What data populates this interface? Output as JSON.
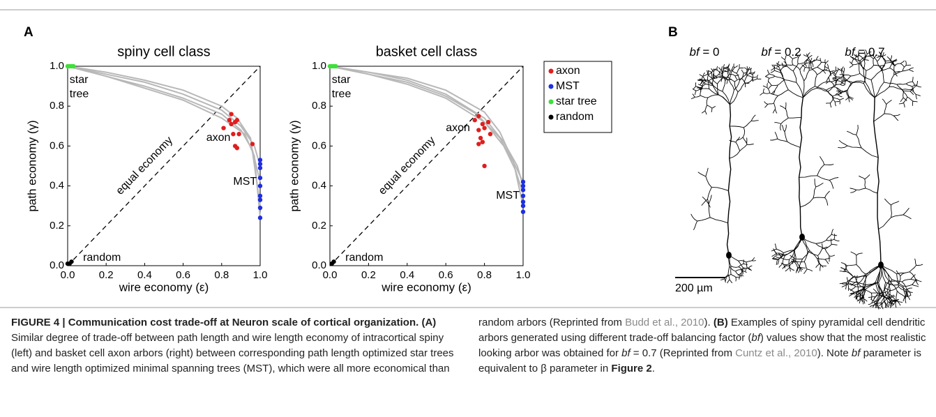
{
  "panel_a_label": "A",
  "chart_data": [
    {
      "type": "scatter",
      "title": "spiny cell class",
      "x_label": "wire economy (ε)",
      "y_label": "path economy (γ)",
      "xlim": [
        0,
        1
      ],
      "ylim": [
        0,
        1
      ],
      "xticks": [
        {
          "value": 0,
          "label": "0.0"
        },
        0.2,
        0.4,
        0.6,
        0.8,
        {
          "value": 1,
          "label": "1.0"
        }
      ],
      "yticks": [
        {
          "value": 0,
          "label": "0.0"
        },
        0.2,
        0.4,
        0.6,
        0.8,
        {
          "value": 1,
          "label": "1.0"
        }
      ],
      "annotations": [
        "star",
        "tree",
        "axon",
        "MST",
        "random",
        "equal economy"
      ],
      "curves": [
        {
          "color": "#b8b8b8",
          "x": [
            0,
            0.2,
            0.4,
            0.6,
            0.8,
            0.9,
            0.97,
            1.0
          ],
          "y": [
            1,
            0.96,
            0.92,
            0.86,
            0.78,
            0.7,
            0.6,
            0.5
          ]
        },
        {
          "color": "#b8b8b8",
          "x": [
            0,
            0.2,
            0.4,
            0.6,
            0.8,
            0.9,
            0.96,
            1.0
          ],
          "y": [
            1,
            0.95,
            0.9,
            0.84,
            0.76,
            0.68,
            0.58,
            0.42
          ]
        },
        {
          "color": "#b8b8b8",
          "x": [
            0,
            0.2,
            0.4,
            0.6,
            0.8,
            0.88,
            0.95,
            1.0
          ],
          "y": [
            1,
            0.97,
            0.93,
            0.88,
            0.8,
            0.74,
            0.64,
            0.3
          ]
        },
        {
          "color": "#b8b8b8",
          "x": [
            0,
            0.2,
            0.4,
            0.6,
            0.8,
            0.92,
            0.97,
            1.0
          ],
          "y": [
            1,
            0.95,
            0.89,
            0.83,
            0.74,
            0.66,
            0.55,
            0.24
          ]
        }
      ],
      "series": [
        {
          "name": "axon",
          "color": "#e01e1e",
          "x": [
            0.85,
            0.87,
            0.88,
            0.85,
            0.81,
            0.86,
            0.89,
            0.87,
            0.88,
            0.96,
            0.84
          ],
          "values": [
            0.76,
            0.72,
            0.73,
            0.71,
            0.69,
            0.66,
            0.66,
            0.6,
            0.59,
            0.61,
            0.73
          ]
        },
        {
          "name": "MST",
          "color": "#1f2fe0",
          "x": [
            1,
            1,
            1,
            1,
            1,
            1,
            1,
            1,
            1
          ],
          "values": [
            0.53,
            0.51,
            0.49,
            0.44,
            0.4,
            0.35,
            0.33,
            0.29,
            0.24
          ]
        },
        {
          "name": "star tree",
          "color": "#3ee03a",
          "x": [
            0,
            0.01,
            0.02,
            0.03
          ],
          "values": [
            1,
            1,
            1,
            1
          ]
        },
        {
          "name": "random",
          "color": "#000000",
          "x": [
            0,
            0.01,
            0.02
          ],
          "values": [
            0.01,
            0.01,
            0.02
          ]
        }
      ]
    },
    {
      "type": "scatter",
      "title": "basket cell class",
      "x_label": "wire economy (ε)",
      "y_label": "path economy (γ)",
      "xlim": [
        0,
        1
      ],
      "ylim": [
        0,
        1
      ],
      "xticks": [
        {
          "value": 0,
          "label": "0.0"
        },
        0.2,
        0.4,
        0.6,
        0.8,
        {
          "value": 1,
          "label": "1.0"
        }
      ],
      "yticks": [
        {
          "value": 0,
          "label": "0.0"
        },
        0.2,
        0.4,
        0.6,
        0.8,
        {
          "value": 1,
          "label": "1.0"
        }
      ],
      "annotations": [
        "star",
        "tree",
        "axon",
        "MST",
        "random",
        "equal economy"
      ],
      "legend": "outside-right",
      "curves": [
        {
          "color": "#b8b8b8",
          "x": [
            0,
            0.2,
            0.4,
            0.6,
            0.8,
            0.9,
            0.97,
            1.0
          ],
          "y": [
            1,
            0.97,
            0.93,
            0.86,
            0.74,
            0.62,
            0.5,
            0.4
          ]
        },
        {
          "color": "#b8b8b8",
          "x": [
            0,
            0.2,
            0.4,
            0.6,
            0.8,
            0.9,
            0.96,
            1.0
          ],
          "y": [
            1,
            0.96,
            0.91,
            0.84,
            0.72,
            0.6,
            0.48,
            0.36
          ]
        },
        {
          "color": "#b8b8b8",
          "x": [
            0,
            0.2,
            0.4,
            0.6,
            0.8,
            0.88,
            0.95,
            1.0
          ],
          "y": [
            1,
            0.97,
            0.94,
            0.88,
            0.77,
            0.67,
            0.52,
            0.3
          ]
        },
        {
          "color": "#b8b8b8",
          "x": [
            0,
            0.2,
            0.4,
            0.6,
            0.76,
            0.88,
            0.96,
            1.0
          ],
          "y": [
            1,
            0.96,
            0.92,
            0.85,
            0.76,
            0.64,
            0.5,
            0.42
          ]
        }
      ],
      "series": [
        {
          "name": "axon",
          "color": "#e01e1e",
          "x": [
            0.77,
            0.75,
            0.79,
            0.82,
            0.77,
            0.8,
            0.83,
            0.78,
            0.79,
            0.77,
            0.8
          ],
          "values": [
            0.75,
            0.73,
            0.71,
            0.72,
            0.68,
            0.69,
            0.66,
            0.64,
            0.62,
            0.61,
            0.5
          ]
        },
        {
          "name": "MST",
          "color": "#1f2fe0",
          "x": [
            1,
            1,
            1,
            1,
            1,
            1,
            1
          ],
          "values": [
            0.42,
            0.4,
            0.38,
            0.35,
            0.32,
            0.3,
            0.27
          ]
        },
        {
          "name": "star tree",
          "color": "#3ee03a",
          "x": [
            0,
            0.01,
            0.02,
            0.03
          ],
          "values": [
            1,
            1,
            1,
            1
          ]
        },
        {
          "name": "random",
          "color": "#000000",
          "x": [
            0.01,
            0.02
          ],
          "values": [
            0.01,
            0.02
          ]
        }
      ]
    }
  ],
  "panel_b": {
    "label": "B",
    "trees": [
      {
        "symbol": "bf",
        "eq": "= 0"
      },
      {
        "symbol": "bf",
        "eq": "= 0.2"
      },
      {
        "symbol": "bf",
        "eq": "= 0.7"
      }
    ],
    "scale_bar": "200 µm"
  },
  "caption": [
    {
      "text": "FIGURE 4 | Communication cost trade-off at Neuron scale of cortical organization.",
      "style": "bold"
    },
    {
      "text": " (A)",
      "style": "bold"
    },
    {
      "text": " Similar degree of trade-off between path length and wire length economy of intracortical spiny (left) and basket cell axon arbors (right) between corresponding path length optimized star trees and wire length optimized minimal spanning trees (MST), which were all more economical than random arbors (Reprinted from ",
      "style": "normal"
    },
    {
      "text": "Budd et al., 2010",
      "style": "link"
    },
    {
      "text": "). ",
      "style": "normal"
    },
    {
      "text": "(B)",
      "style": "bold"
    },
    {
      "text": " Examples of spiny pyramidal cell dendritic arbors generated using different trade-off balancing factor (",
      "style": "normal"
    },
    {
      "text": "bf",
      "style": "italic"
    },
    {
      "text": ") values show that the most realistic looking arbor was obtained for ",
      "style": "normal"
    },
    {
      "text": "bf",
      "style": "italic"
    },
    {
      "text": " = 0.7 (Reprinted from ",
      "style": "normal"
    },
    {
      "text": "Cuntz et al., 2010",
      "style": "link"
    },
    {
      "text": "). Note ",
      "style": "normal"
    },
    {
      "text": "bf",
      "style": "italic"
    },
    {
      "text": " parameter is equivalent to β parameter in ",
      "style": "normal"
    },
    {
      "text": "Figure 2",
      "style": "bold"
    },
    {
      "text": ".",
      "style": "normal"
    }
  ]
}
